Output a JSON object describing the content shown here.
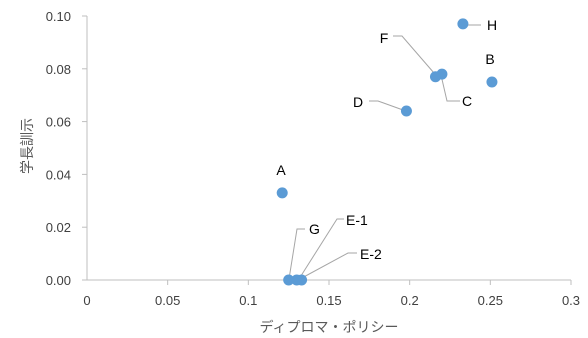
{
  "chart_data": {
    "type": "scatter",
    "xlabel": "ディプロマ・ポリシー",
    "ylabel": "学長訓示",
    "xlim": [
      0,
      0.3
    ],
    "ylim": [
      0,
      0.1
    ],
    "x_ticks": [
      "0",
      "0.05",
      "0.1",
      "0.15",
      "0.2",
      "0.25",
      "0.3"
    ],
    "y_ticks": [
      "0.00",
      "0.02",
      "0.04",
      "0.06",
      "0.08",
      "0.10"
    ],
    "grid": false,
    "marker_color": "#5B9BD5",
    "points": [
      {
        "label": "A",
        "x": 0.121,
        "y": 0.033
      },
      {
        "label": "B",
        "x": 0.251,
        "y": 0.075
      },
      {
        "label": "C",
        "x": 0.22,
        "y": 0.078
      },
      {
        "label": "D",
        "x": 0.198,
        "y": 0.064
      },
      {
        "label": "E-1",
        "x": 0.133,
        "y": 0.0
      },
      {
        "label": "E-2",
        "x": 0.13,
        "y": 0.0
      },
      {
        "label": "F",
        "x": 0.216,
        "y": 0.077
      },
      {
        "label": "G",
        "x": 0.125,
        "y": 0.0
      },
      {
        "label": "H",
        "x": 0.233,
        "y": 0.097
      }
    ]
  }
}
